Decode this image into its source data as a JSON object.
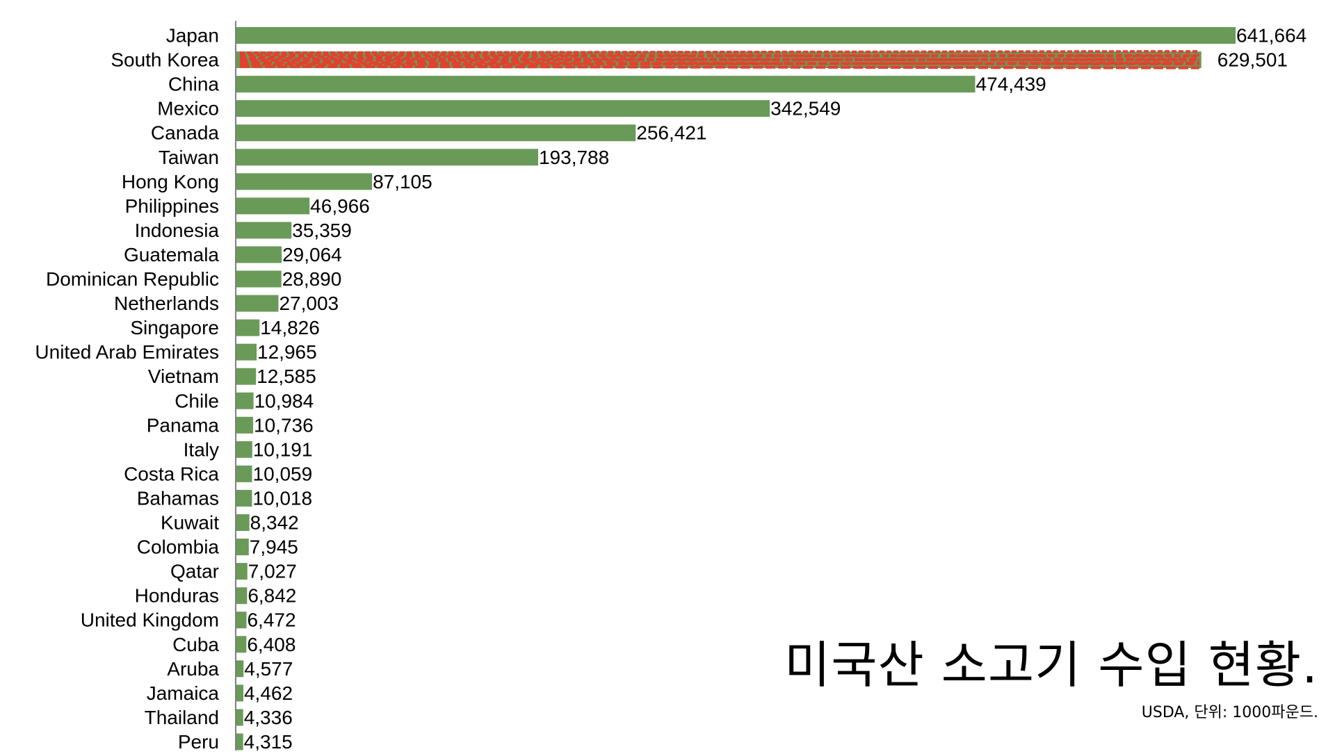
{
  "chart_data": {
    "type": "bar",
    "orientation": "horizontal",
    "title": "미국산 소고기 수입 현황.",
    "subtitle": "USDA, 단위: 1000파운드.",
    "categories": [
      "Japan",
      "South Korea",
      "China",
      "Mexico",
      "Canada",
      "Taiwan",
      "Hong Kong",
      "Philippines",
      "Indonesia",
      "Guatemala",
      "Dominican Republic",
      "Netherlands",
      "Singapore",
      "United Arab Emirates",
      "Vietnam",
      "Chile",
      "Panama",
      "Italy",
      "Costa Rica",
      "Bahamas",
      "Kuwait",
      "Colombia",
      "Qatar",
      "Honduras",
      "United Kingdom",
      "Cuba",
      "Aruba",
      "Jamaica",
      "Thailand",
      "Peru"
    ],
    "values": [
      641664,
      629501,
      474439,
      342549,
      256421,
      193788,
      87105,
      46966,
      35359,
      29064,
      28890,
      27003,
      14826,
      12965,
      12585,
      10984,
      10736,
      10191,
      10059,
      10018,
      8342,
      7945,
      7027,
      6842,
      6472,
      6408,
      4577,
      4462,
      4336,
      4315
    ],
    "value_labels": [
      "641,664",
      "629,501",
      "474,439",
      "342,549",
      "256,421",
      "193,788",
      "87,105",
      "46,966",
      "35,359",
      "29,064",
      "28,890",
      "27,003",
      "14,826",
      "12,965",
      "12,585",
      "10,984",
      "10,736",
      "10,191",
      "10,059",
      "10,018",
      "8,342",
      "7,945",
      "7,027",
      "6,842",
      "6,472",
      "6,408",
      "4,577",
      "4,462",
      "4,336",
      "4,315"
    ],
    "highlight_category": "South Korea",
    "bar_color": "#6a9a58",
    "highlight_color": "#e2412f",
    "xlim": [
      0,
      641664
    ],
    "grid": false,
    "legend": "none"
  }
}
